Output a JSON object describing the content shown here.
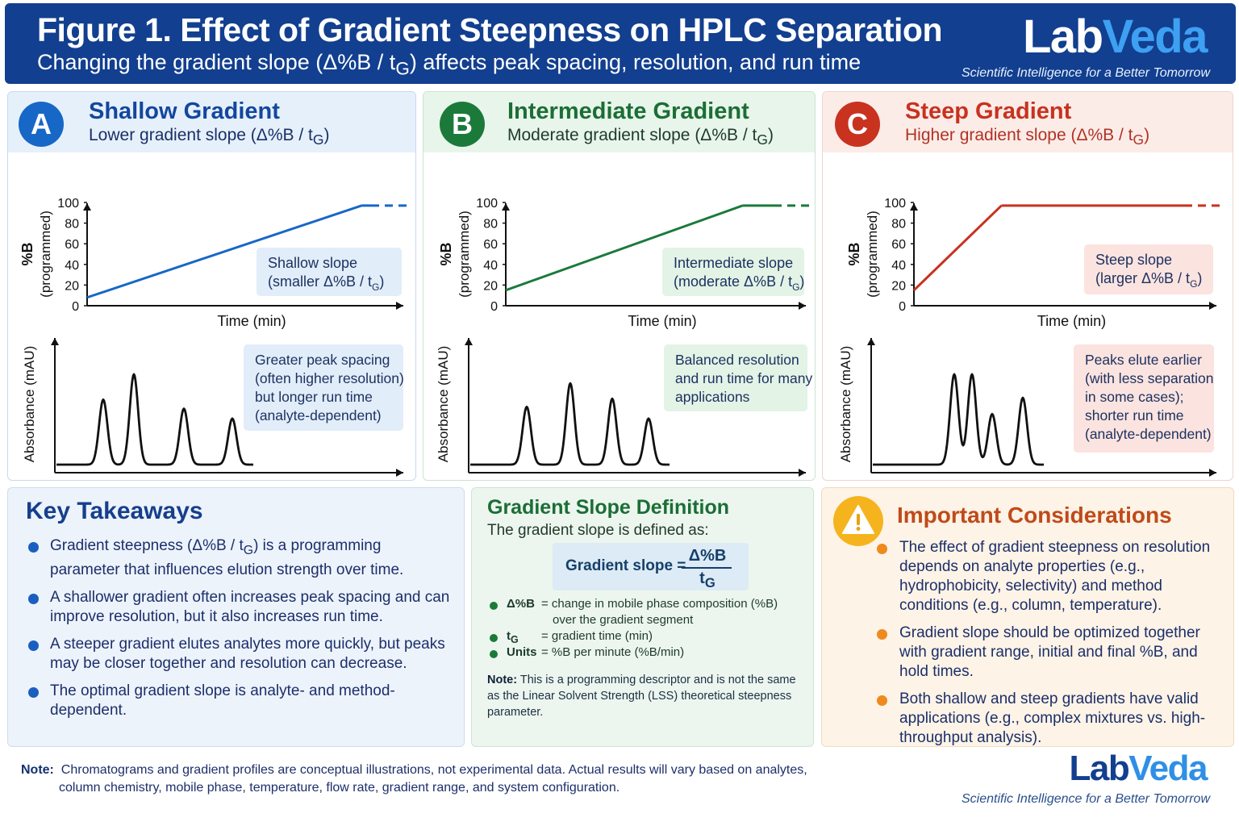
{
  "header": {
    "title": "Figure 1.  Effect of Gradient Steepness on HPLC Separation",
    "subtitle_pre": "Changing the gradient slope (Δ%B / t",
    "subtitle_sub": "G",
    "subtitle_post": ") affects peak spacing, resolution, and run time",
    "brand_lab": "Lab",
    "brand_veda": "Veda",
    "tagline": "Scientific Intelligence for a Better Tomorrow"
  },
  "panels": [
    {
      "letter": "A",
      "title": "Shallow Gradient",
      "subtitle_pre": "Lower gradient slope (Δ%B / t",
      "subtitle_sub": "G",
      "subtitle_post": ")",
      "color": "#1767c7",
      "gradient_points": [
        [
          0,
          8
        ],
        [
          3.3,
          97
        ]
      ],
      "y_label_1": "%B",
      "y_label_2": "(programmed)",
      "y_ticks": [
        "100",
        "80",
        "60",
        "40",
        "20",
        "0"
      ],
      "x_label": "Time (min)",
      "callout_lines": [
        "Shallow slope",
        "(smaller Δ%B / t"
      ],
      "callout_sub": "G",
      "callout_tail": ")",
      "absorbance_label": "Absorbance (mAU)",
      "peaks": [
        [
          0.52,
          0.72
        ],
        [
          0.9,
          1.0
        ],
        [
          1.52,
          0.62
        ],
        [
          2.12,
          0.51
        ]
      ],
      "peak_note": [
        "Greater peak spacing",
        "(often higher resolution)",
        "but longer run time",
        "(analyte-dependent)"
      ],
      "chrom_x_label": "Time (min)"
    },
    {
      "letter": "B",
      "title": "Intermediate Gradient",
      "subtitle_pre": "Moderate gradient slope (Δ%B / t",
      "subtitle_sub": "G",
      "subtitle_post": ")",
      "color": "#1b7a3a",
      "gradient_points": [
        [
          0,
          15
        ],
        [
          3.0,
          97
        ]
      ],
      "y_label_1": "%B",
      "y_label_2": "(programmed)",
      "y_ticks": [
        "100",
        "80",
        "60",
        "40",
        "20",
        "0"
      ],
      "x_label": "Time (min)",
      "callout_lines": [
        "Intermediate slope",
        "(moderate Δ%B / t"
      ],
      "callout_sub": "G",
      "callout_tail": ")",
      "absorbance_label": "Absorbance (mAU)",
      "peaks": [
        [
          0.64,
          0.64
        ],
        [
          1.18,
          0.9
        ],
        [
          1.7,
          0.73
        ],
        [
          2.15,
          0.51
        ]
      ],
      "peak_note": [
        "Balanced resolution",
        "and run time for many",
        "applications"
      ],
      "chrom_x_label": "Time (min)"
    },
    {
      "letter": "C",
      "title": "Steep Gradient",
      "subtitle_pre": "Higher gradient slope (Δ%B / t",
      "subtitle_sub": "G",
      "subtitle_post": ")",
      "color": "#c8321f",
      "gradient_points": [
        [
          0,
          15
        ],
        [
          1.1,
          97
        ]
      ],
      "y_label_1": "%B",
      "y_label_2": "(programmed)",
      "y_ticks": [
        "100",
        "80",
        "60",
        "40",
        "20",
        "0"
      ],
      "x_label": "Time (min)",
      "callout_lines": [
        "Steep slope",
        "(larger Δ%B / t"
      ],
      "callout_sub": "G",
      "callout_tail": ")",
      "absorbance_label": "Absorbance (mAU)",
      "peaks": [
        [
          0.95,
          1.0
        ],
        [
          1.17,
          1.0
        ],
        [
          1.42,
          0.56
        ],
        [
          1.8,
          0.74
        ]
      ],
      "peak_note": [
        "Peaks elute earlier",
        "(with less separation",
        "in some cases);",
        "shorter run time",
        "(analyte-dependent)"
      ],
      "chrom_x_label": "Time (min)"
    }
  ],
  "takeaways": {
    "title": "Key Takeaways",
    "items": [
      "Gradient steepness (Δ%B / tG) is a programming parameter that influences elution strength over time.",
      "A shallower gradient often increases peak spacing and can improve resolution, but it also increases run time.",
      "A steeper gradient elutes analytes more quickly, but peaks may be closer together and resolution can decrease.",
      "The optimal gradient slope is analyte- and method-dependent."
    ]
  },
  "definition": {
    "title": "Gradient Slope Definition",
    "intro": "The gradient slope is defined as:",
    "formula_label": "Gradient slope  =",
    "numerator": "Δ%B",
    "denominator": "tG",
    "defs": [
      {
        "symbol": "Δ%B",
        "desc": "= change in mobile phase composition (%B)"
      },
      {
        "symbol": "",
        "desc": "over the gradient segment"
      },
      {
        "symbol": "tG",
        "desc": "= gradient time (min)"
      },
      {
        "symbol": "Units",
        "desc": "= %B per minute (%B/min)"
      }
    ],
    "note_label": "Note:",
    "note_text": "This is a programming descriptor and is not the same as the Linear Solvent Strength (LSS) theoretical steepness parameter."
  },
  "considerations": {
    "title": "Important Considerations",
    "items": [
      "The effect of gradient steepness on resolution depends on analyte properties (e.g., hydrophobicity, selectivity) and method conditions (e.g., column, temperature).",
      "Gradient slope should be optimized together with gradient range, initial and final %B, and hold times.",
      "Both shallow and steep gradients have valid applications (e.g., complex mixtures vs. high-throughput analysis)."
    ]
  },
  "footer": {
    "note_label": "Note:",
    "note_line1": "Chromatograms and gradient profiles are conceptual illustrations, not experimental data.  Actual results will vary based on analytes,",
    "note_line2": "column chemistry, mobile phase, temperature, flow rate, gradient range, and system configuration.",
    "brand_lab": "Lab",
    "brand_veda": "Veda",
    "tagline": "Scientific Intelligence for a Better Tomorrow"
  }
}
